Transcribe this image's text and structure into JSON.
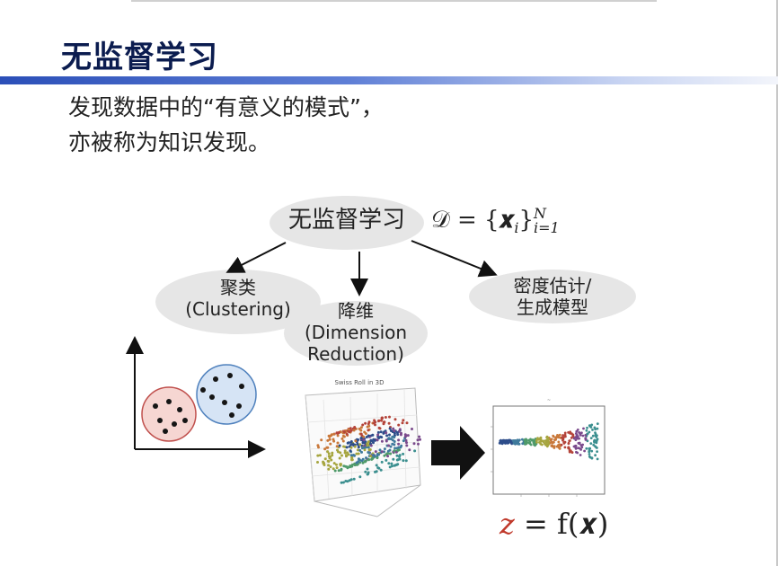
{
  "slide": {
    "title": "无监督学习",
    "line1": "发现数据中的“有意义的模式”，",
    "line2": "亦被称为知识发现。"
  },
  "diagram": {
    "main": "无监督学习",
    "dataset_formula": {
      "prefix": "𝒟 = {",
      "var": "𝒙",
      "sub": "i",
      "close": "}",
      "sup": "N",
      "lower": "i=1"
    },
    "clustering": {
      "line1": "聚类",
      "line2": "(Clustering)"
    },
    "dimred": {
      "line1": "降维",
      "line2": "(Dimension",
      "line3": "Reduction)"
    },
    "density": {
      "line1": "密度估计/",
      "line2": "生成模型"
    },
    "mapping_formula": {
      "z": "z",
      "rest": " = f(𝒙)"
    },
    "plot_3d_title": "Swiss Roll in 3D"
  },
  "colors": {
    "title": "#0b1c4f",
    "accent_bar": "#2b4fb8",
    "ellipse": "#e6e6e6",
    "cluster_red": "#f6d6d2",
    "cluster_blue": "#d6e4f5"
  }
}
